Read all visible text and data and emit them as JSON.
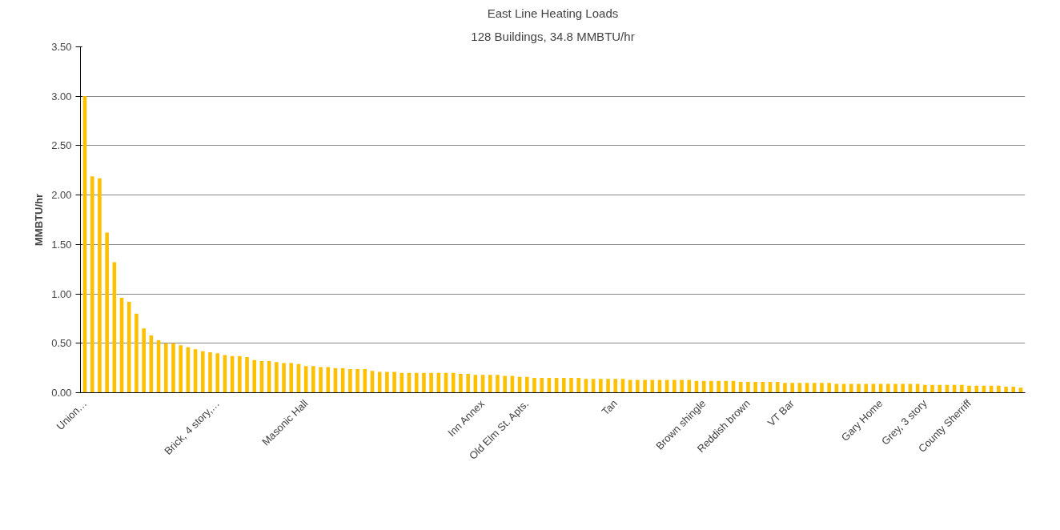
{
  "chart_data": {
    "type": "bar",
    "title": "East Line Heating Loads",
    "subtitle": "128 Buildings, 34.8 MMBTU/hr",
    "ylabel": "MMBTU/hr",
    "color": "#ffc000",
    "categories": [
      "Union…",
      null,
      null,
      null,
      null,
      null,
      null,
      null,
      null,
      null,
      null,
      null,
      null,
      null,
      null,
      null,
      null,
      null,
      "Brick, 4 story,…",
      null,
      null,
      null,
      null,
      null,
      null,
      null,
      null,
      null,
      null,
      null,
      "Masonic Hall",
      null,
      null,
      null,
      null,
      null,
      null,
      null,
      null,
      null,
      null,
      null,
      null,
      null,
      null,
      null,
      null,
      null,
      null,
      null,
      null,
      null,
      null,
      null,
      "Inn Annex",
      null,
      null,
      null,
      null,
      null,
      "Old Elm St. Apts.",
      null,
      null,
      null,
      null,
      null,
      null,
      null,
      null,
      null,
      null,
      null,
      "Tan",
      null,
      null,
      null,
      null,
      null,
      null,
      null,
      null,
      null,
      null,
      null,
      "Brown shingle",
      null,
      null,
      null,
      null,
      null,
      "Reddish brown",
      null,
      null,
      null,
      null,
      null,
      "VT Bar",
      null,
      null,
      null,
      null,
      null,
      null,
      null,
      null,
      null,
      null,
      null,
      "Gary Home",
      null,
      null,
      null,
      null,
      null,
      "Grey, 3 story",
      null,
      null,
      null,
      null,
      null,
      "County Sherriff",
      null,
      null,
      null,
      null,
      null,
      null,
      null
    ],
    "values": [
      3.0,
      2.19,
      2.17,
      1.62,
      1.32,
      0.96,
      0.92,
      0.8,
      0.65,
      0.58,
      0.53,
      0.5,
      0.5,
      0.48,
      0.46,
      0.44,
      0.42,
      0.41,
      0.4,
      0.38,
      0.37,
      0.37,
      0.36,
      0.33,
      0.32,
      0.32,
      0.31,
      0.3,
      0.3,
      0.29,
      0.27,
      0.27,
      0.26,
      0.26,
      0.25,
      0.25,
      0.24,
      0.24,
      0.24,
      0.22,
      0.21,
      0.21,
      0.21,
      0.2,
      0.2,
      0.2,
      0.2,
      0.2,
      0.2,
      0.2,
      0.2,
      0.19,
      0.19,
      0.18,
      0.18,
      0.18,
      0.18,
      0.17,
      0.17,
      0.16,
      0.16,
      0.15,
      0.15,
      0.15,
      0.15,
      0.15,
      0.15,
      0.15,
      0.14,
      0.14,
      0.14,
      0.14,
      0.14,
      0.14,
      0.13,
      0.13,
      0.13,
      0.13,
      0.13,
      0.13,
      0.13,
      0.13,
      0.13,
      0.12,
      0.12,
      0.12,
      0.12,
      0.12,
      0.12,
      0.11,
      0.11,
      0.11,
      0.11,
      0.11,
      0.11,
      0.1,
      0.1,
      0.1,
      0.1,
      0.1,
      0.1,
      0.1,
      0.09,
      0.09,
      0.09,
      0.09,
      0.09,
      0.09,
      0.09,
      0.09,
      0.09,
      0.09,
      0.09,
      0.09,
      0.08,
      0.08,
      0.08,
      0.08,
      0.08,
      0.08,
      0.07,
      0.07,
      0.07,
      0.07,
      0.07,
      0.06,
      0.06,
      0.05
    ],
    "ylim": [
      0,
      3.5
    ],
    "yticks": [
      {
        "value": 0,
        "label": "0.00"
      },
      {
        "value": 0.5,
        "label": "0.50"
      },
      {
        "value": 1,
        "label": "1.00"
      },
      {
        "value": 1.5,
        "label": "1.50"
      },
      {
        "value": 2,
        "label": "2.00"
      },
      {
        "value": 2.5,
        "label": "2.50"
      },
      {
        "value": 3,
        "label": "3.00"
      },
      {
        "value": 3.5,
        "label": "3.50"
      }
    ],
    "grid": "y"
  }
}
